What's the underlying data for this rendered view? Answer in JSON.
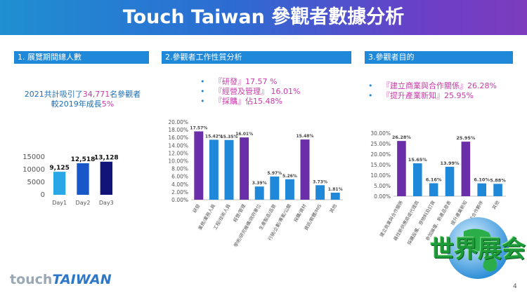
{
  "header": {
    "title": "Touch Taiwan 參觀者數據分析"
  },
  "sections": {
    "s1": "1. 展覽期間總人數",
    "s2": "2.參觀者工作性質分析",
    "s3": "3.參觀者目的"
  },
  "summary": {
    "line1_a": "2021共計吸引了",
    "line1_b": "34,771",
    "line1_c": "名參觀者",
    "line2_a": "較2019年成長",
    "line2_b": "5%"
  },
  "highlights2": [
    "『研發』17.57 %",
    "『經營及管理』 16.01%",
    "『採購』佔15.48%"
  ],
  "highlights3": [
    "『建立商業與合作關係』26.28%",
    "『提升產業新知』25.95%"
  ],
  "chart_data": [
    {
      "type": "bar",
      "title": "",
      "categories": [
        "Day1",
        "Day2",
        "Day3"
      ],
      "values": [
        9125,
        12518,
        13128
      ],
      "data_labels": [
        "9,125",
        "12,518",
        "13,128"
      ],
      "ylim": [
        0,
        15000
      ],
      "yticks": [
        "0",
        "5000",
        "10000",
        "15000"
      ],
      "colors": [
        "#2aa7e6",
        "#1857c7",
        "#13147a"
      ],
      "grid": false
    },
    {
      "type": "bar",
      "title": "",
      "categories": [
        "研發",
        "業務/業務人員",
        "工程/技術人員",
        "經營/管理",
        "學術/研究機構/政府單位",
        "生產製造/品管",
        "行銷/企劃/專案/公關",
        "採購/資材",
        "資訊/軟體/MIS",
        "其他"
      ],
      "values": [
        17.57,
        15.42,
        15.35,
        16.01,
        3.39,
        5.97,
        5.26,
        15.48,
        3.73,
        1.81
      ],
      "data_labels": [
        "17.57%",
        "15.42%",
        "15.35%",
        "16.01%",
        "3.39%",
        "5.97%",
        "5.26%",
        "15.48%",
        "3.73%",
        "1.81%"
      ],
      "ylim": [
        0,
        20
      ],
      "yticks": [
        "0.00%",
        "2.00%",
        "4.00%",
        "6.00%",
        "8.00%",
        "10.00%",
        "12.00%",
        "14.00%",
        "16.00%",
        "18.00%",
        "20.00%"
      ],
      "colors": [
        "#6a2fa8",
        "#1f88d8",
        "#1f88d8",
        "#6a2fa8",
        "#1f88d8",
        "#1f88d8",
        "#1f88d8",
        "#6a2fa8",
        "#1f88d8",
        "#1f88d8"
      ],
      "grid": false
    },
    {
      "type": "bar",
      "title": "",
      "categories": [
        "建立商業與合作關係",
        "尋找新供應商或代理商",
        "採購設備、原物料及訂貨",
        "參加論壇、新產品發表",
        "提升產業新知",
        "尋找合作夥伴",
        "其他"
      ],
      "values": [
        26.28,
        15.65,
        6.16,
        13.99,
        25.95,
        6.1,
        5.88
      ],
      "data_labels": [
        "26.28%",
        "15.65%",
        "6.16%",
        "13.99%",
        "25.95%",
        "6.10%",
        "5.88%"
      ],
      "ylim": [
        0,
        30
      ],
      "yticks": [
        "0.00%",
        "5.00%",
        "10.00%",
        "15.00%",
        "20.00%",
        "25.00%",
        "30.00%"
      ],
      "colors": [
        "#6a2fa8",
        "#1f88d8",
        "#1f88d8",
        "#1f88d8",
        "#6a2fa8",
        "#1f88d8",
        "#1f88d8"
      ],
      "grid": false
    }
  ],
  "logo": {
    "part1": "touch",
    "part2": "TAIWAN"
  },
  "badge": {
    "text": "世界展会"
  },
  "page": {
    "number": "4"
  }
}
